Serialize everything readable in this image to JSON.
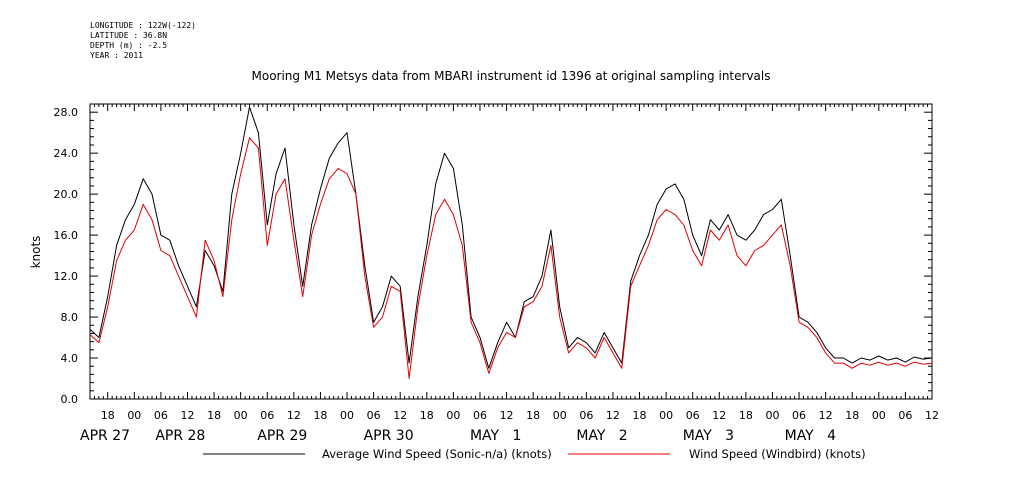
{
  "metadata": {
    "longitude": "LONGITUDE : 122W(-122)",
    "latitude": "LATITUDE : 36.8N",
    "depth": "DEPTH (m) : -2.5",
    "year": "YEAR : 2011"
  },
  "chart_data": {
    "type": "line",
    "title": "Mooring M1 Metsys data from MBARI instrument id 1396 at original sampling intervals",
    "ylabel": "knots",
    "xlabel": "",
    "ylim": [
      0,
      28.8
    ],
    "yticks": [
      "0.0",
      "4.0",
      "8.0",
      "12.0",
      "16.0",
      "20.0",
      "24.0",
      "28.0"
    ],
    "ytick_values": [
      0,
      4,
      8,
      12,
      16,
      20,
      24,
      28
    ],
    "x_unit": "hours since APR 27 00:00 (2011)",
    "xlim": [
      14,
      204
    ],
    "hour_ticks": [
      {
        "h": 18,
        "label": "18"
      },
      {
        "h": 24,
        "label": "00"
      },
      {
        "h": 30,
        "label": "06"
      },
      {
        "h": 36,
        "label": "12"
      },
      {
        "h": 42,
        "label": "18"
      },
      {
        "h": 48,
        "label": "00"
      },
      {
        "h": 54,
        "label": "06"
      },
      {
        "h": 60,
        "label": "12"
      },
      {
        "h": 66,
        "label": "18"
      },
      {
        "h": 72,
        "label": "00"
      },
      {
        "h": 78,
        "label": "06"
      },
      {
        "h": 84,
        "label": "12"
      },
      {
        "h": 90,
        "label": "18"
      },
      {
        "h": 96,
        "label": "00"
      },
      {
        "h": 102,
        "label": "06"
      },
      {
        "h": 108,
        "label": "12"
      },
      {
        "h": 114,
        "label": "18"
      },
      {
        "h": 120,
        "label": "00"
      },
      {
        "h": 126,
        "label": "06"
      },
      {
        "h": 132,
        "label": "12"
      },
      {
        "h": 138,
        "label": "18"
      },
      {
        "h": 144,
        "label": "00"
      },
      {
        "h": 150,
        "label": "06"
      },
      {
        "h": 156,
        "label": "12"
      },
      {
        "h": 162,
        "label": "18"
      },
      {
        "h": 168,
        "label": "00"
      },
      {
        "h": 174,
        "label": "06"
      },
      {
        "h": 180,
        "label": "12"
      },
      {
        "h": 186,
        "label": "18"
      },
      {
        "h": 192,
        "label": "00"
      },
      {
        "h": 198,
        "label": "06"
      },
      {
        "h": 204,
        "label": "12"
      }
    ],
    "date_labels": [
      {
        "h": 14,
        "label": "APR 27"
      },
      {
        "h": 31,
        "label": "APR 28"
      },
      {
        "h": 54,
        "label": "APR 29"
      },
      {
        "h": 78,
        "label": "APR 30"
      },
      {
        "h": 102,
        "label": "MAY   1"
      },
      {
        "h": 126,
        "label": "MAY   2"
      },
      {
        "h": 150,
        "label": "MAY   3"
      },
      {
        "h": 173,
        "label": "MAY   4"
      }
    ],
    "grid": false,
    "legend_position": "bottom",
    "series": [
      {
        "name": "Average Wind Speed (Sonic-n/a) (knots)",
        "color": "#000000",
        "x": [
          14,
          16,
          18,
          20,
          22,
          24,
          26,
          28,
          30,
          32,
          34,
          36,
          38,
          40,
          42,
          44,
          46,
          48,
          50,
          52,
          54,
          56,
          58,
          60,
          62,
          64,
          66,
          68,
          70,
          72,
          74,
          76,
          78,
          80,
          82,
          84,
          86,
          88,
          90,
          92,
          94,
          96,
          98,
          100,
          102,
          104,
          106,
          108,
          110,
          112,
          114,
          116,
          118,
          120,
          122,
          124,
          126,
          128,
          130,
          132,
          134,
          136,
          138,
          140,
          142,
          144,
          146,
          148,
          150,
          152,
          154,
          156,
          158,
          160,
          162,
          164,
          166,
          168,
          170,
          172,
          174,
          176,
          178,
          180,
          182,
          184,
          186,
          188,
          190,
          192,
          194,
          196,
          198,
          200,
          202,
          204
        ],
        "y": [
          6.8,
          6.0,
          10.0,
          15.0,
          17.5,
          19.0,
          21.5,
          20.0,
          16.0,
          15.5,
          13.0,
          11.0,
          9.0,
          14.5,
          13.0,
          10.5,
          20.0,
          24.0,
          28.5,
          26.0,
          17.0,
          22.0,
          24.5,
          17.0,
          11.0,
          17.0,
          20.5,
          23.5,
          25.0,
          26.0,
          20.0,
          13.0,
          7.5,
          9.0,
          12.0,
          11.0,
          3.5,
          10.0,
          15.0,
          21.0,
          24.0,
          22.5,
          17.0,
          8.0,
          6.0,
          3.0,
          5.5,
          7.5,
          6.0,
          9.5,
          10.0,
          12.0,
          16.5,
          9.0,
          5.0,
          6.0,
          5.5,
          4.5,
          6.5,
          5.0,
          3.5,
          11.5,
          14.0,
          16.0,
          19.0,
          20.5,
          21.0,
          19.5,
          16.0,
          14.0,
          17.5,
          16.5,
          18.0,
          16.0,
          15.5,
          16.5,
          18.0,
          18.5,
          19.5,
          14.0,
          8.0,
          7.5,
          6.5,
          5.0,
          4.0,
          4.0,
          3.5,
          4.0,
          3.8,
          4.2,
          3.8,
          4.0,
          3.6,
          4.1,
          3.9,
          4.0
        ]
      },
      {
        "name": "Wind Speed (Windbird) (knots)",
        "color": "#e00000",
        "x": [
          14,
          16,
          18,
          20,
          22,
          24,
          26,
          28,
          30,
          32,
          34,
          36,
          38,
          40,
          42,
          44,
          46,
          48,
          50,
          52,
          54,
          56,
          58,
          60,
          62,
          64,
          66,
          68,
          70,
          72,
          74,
          76,
          78,
          80,
          82,
          84,
          86,
          88,
          90,
          92,
          94,
          96,
          98,
          100,
          102,
          104,
          106,
          108,
          110,
          112,
          114,
          116,
          118,
          120,
          122,
          124,
          126,
          128,
          130,
          132,
          134,
          136,
          138,
          140,
          142,
          144,
          146,
          148,
          150,
          152,
          154,
          156,
          158,
          160,
          162,
          164,
          166,
          168,
          170,
          172,
          174,
          176,
          178,
          180,
          182,
          184,
          186,
          188,
          190,
          192,
          194,
          196,
          198,
          200,
          202,
          204
        ],
        "y": [
          6.3,
          5.5,
          9.0,
          13.5,
          15.5,
          16.5,
          19.0,
          17.5,
          14.5,
          14.0,
          12.0,
          10.0,
          8.0,
          15.5,
          13.5,
          10.0,
          17.5,
          22.0,
          25.5,
          24.5,
          15.0,
          20.0,
          21.5,
          15.5,
          10.0,
          16.0,
          19.0,
          21.5,
          22.5,
          22.0,
          20.0,
          12.0,
          7.0,
          8.0,
          11.0,
          10.5,
          2.0,
          9.0,
          14.0,
          18.0,
          19.5,
          18.0,
          15.0,
          7.5,
          5.5,
          2.5,
          5.0,
          6.5,
          6.0,
          9.0,
          9.5,
          11.0,
          15.0,
          8.0,
          4.5,
          5.5,
          5.0,
          4.0,
          6.0,
          4.5,
          3.0,
          11.0,
          13.0,
          15.0,
          17.5,
          18.5,
          18.0,
          17.0,
          14.5,
          13.0,
          16.5,
          15.5,
          17.0,
          14.0,
          13.0,
          14.5,
          15.0,
          16.0,
          17.0,
          13.0,
          7.5,
          7.0,
          6.0,
          4.5,
          3.5,
          3.5,
          3.0,
          3.5,
          3.3,
          3.6,
          3.3,
          3.5,
          3.2,
          3.6,
          3.4,
          3.5
        ]
      }
    ]
  }
}
